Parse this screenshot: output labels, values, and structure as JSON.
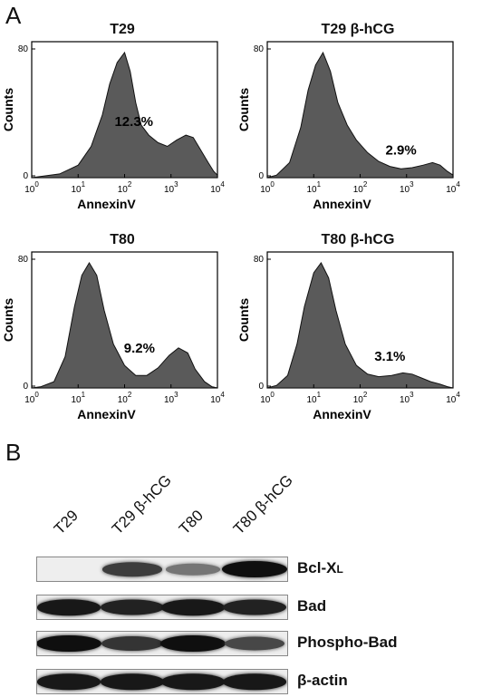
{
  "panels": {
    "a": "A",
    "b": "B"
  },
  "histograms": [
    {
      "title": "T29",
      "percent": "12.3%",
      "ylabel": "Counts",
      "xlabel": "AnnexinV",
      "yticks": [
        "0",
        "80"
      ],
      "xticks": [
        "10",
        "10",
        "10",
        "10",
        "10"
      ],
      "xtick_exponents": [
        "0",
        "1",
        "2",
        "3",
        "4"
      ],
      "shape": [
        [
          0,
          0
        ],
        [
          0.05,
          0.01
        ],
        [
          0.15,
          0.03
        ],
        [
          0.25,
          0.1
        ],
        [
          0.32,
          0.25
        ],
        [
          0.38,
          0.5
        ],
        [
          0.42,
          0.75
        ],
        [
          0.46,
          0.92
        ],
        [
          0.5,
          1.0
        ],
        [
          0.53,
          0.85
        ],
        [
          0.56,
          0.6
        ],
        [
          0.59,
          0.42
        ],
        [
          0.63,
          0.34
        ],
        [
          0.68,
          0.28
        ],
        [
          0.73,
          0.25
        ],
        [
          0.78,
          0.3
        ],
        [
          0.83,
          0.34
        ],
        [
          0.87,
          0.32
        ],
        [
          0.91,
          0.22
        ],
        [
          0.95,
          0.12
        ],
        [
          0.98,
          0.05
        ],
        [
          1.0,
          0.02
        ]
      ]
    },
    {
      "title": "T29 β-hCG",
      "percent": "2.9%",
      "ylabel": "Counts",
      "xlabel": "AnnexinV",
      "yticks": [
        "0",
        "80"
      ],
      "xticks": [
        "10",
        "10",
        "10",
        "10",
        "10"
      ],
      "xtick_exponents": [
        "0",
        "1",
        "2",
        "3",
        "4"
      ],
      "shape": [
        [
          0,
          0
        ],
        [
          0.05,
          0.02
        ],
        [
          0.12,
          0.12
        ],
        [
          0.18,
          0.4
        ],
        [
          0.22,
          0.7
        ],
        [
          0.26,
          0.9
        ],
        [
          0.3,
          1.0
        ],
        [
          0.34,
          0.85
        ],
        [
          0.38,
          0.6
        ],
        [
          0.43,
          0.42
        ],
        [
          0.48,
          0.3
        ],
        [
          0.54,
          0.2
        ],
        [
          0.6,
          0.13
        ],
        [
          0.66,
          0.09
        ],
        [
          0.72,
          0.07
        ],
        [
          0.78,
          0.08
        ],
        [
          0.84,
          0.1
        ],
        [
          0.89,
          0.12
        ],
        [
          0.93,
          0.1
        ],
        [
          0.97,
          0.05
        ],
        [
          1.0,
          0.02
        ]
      ]
    },
    {
      "title": "T80",
      "percent": "9.2%",
      "ylabel": "Counts",
      "xlabel": "AnnexinV",
      "yticks": [
        "0",
        "80"
      ],
      "xticks": [
        "10",
        "10",
        "10",
        "10",
        "10"
      ],
      "xtick_exponents": [
        "0",
        "1",
        "2",
        "3",
        "4"
      ],
      "shape": [
        [
          0,
          0
        ],
        [
          0.05,
          0.01
        ],
        [
          0.12,
          0.05
        ],
        [
          0.18,
          0.25
        ],
        [
          0.23,
          0.65
        ],
        [
          0.27,
          0.9
        ],
        [
          0.31,
          1.0
        ],
        [
          0.35,
          0.9
        ],
        [
          0.39,
          0.62
        ],
        [
          0.44,
          0.35
        ],
        [
          0.5,
          0.18
        ],
        [
          0.56,
          0.1
        ],
        [
          0.62,
          0.1
        ],
        [
          0.68,
          0.16
        ],
        [
          0.74,
          0.26
        ],
        [
          0.79,
          0.32
        ],
        [
          0.84,
          0.28
        ],
        [
          0.88,
          0.15
        ],
        [
          0.93,
          0.05
        ],
        [
          0.97,
          0.01
        ],
        [
          1.0,
          0.0
        ]
      ]
    },
    {
      "title": "T80 β-hCG",
      "percent": "3.1%",
      "ylabel": "Counts",
      "xlabel": "AnnexinV",
      "yticks": [
        "0",
        "80"
      ],
      "xticks": [
        "10",
        "10",
        "10",
        "10",
        "10"
      ],
      "xtick_exponents": [
        "0",
        "1",
        "2",
        "3",
        "4"
      ],
      "shape": [
        [
          0,
          0
        ],
        [
          0.05,
          0.02
        ],
        [
          0.11,
          0.1
        ],
        [
          0.16,
          0.35
        ],
        [
          0.2,
          0.65
        ],
        [
          0.25,
          0.92
        ],
        [
          0.29,
          1.0
        ],
        [
          0.33,
          0.88
        ],
        [
          0.37,
          0.62
        ],
        [
          0.42,
          0.35
        ],
        [
          0.48,
          0.18
        ],
        [
          0.54,
          0.11
        ],
        [
          0.6,
          0.09
        ],
        [
          0.67,
          0.1
        ],
        [
          0.73,
          0.12
        ],
        [
          0.78,
          0.11
        ],
        [
          0.83,
          0.08
        ],
        [
          0.88,
          0.05
        ],
        [
          0.93,
          0.03
        ],
        [
          0.97,
          0.01
        ],
        [
          1.0,
          0.0
        ]
      ]
    }
  ],
  "blot": {
    "lanes": [
      "T29",
      "T29 β-hCG",
      "T80",
      "T80 β-hCG"
    ],
    "rows": [
      {
        "label_main": "Bcl-X",
        "label_sub": "L",
        "intensities": [
          0.0,
          0.75,
          0.45,
          1.0
        ]
      },
      {
        "label_main": "Bad",
        "label_sub": "",
        "intensities": [
          0.95,
          0.9,
          0.95,
          0.9
        ]
      },
      {
        "label_main": "Phospho-Bad",
        "label_sub": "",
        "intensities": [
          1.0,
          0.8,
          1.0,
          0.7
        ]
      },
      {
        "label_main": "β-actin",
        "label_sub": "",
        "intensities": [
          0.95,
          0.95,
          0.95,
          0.95
        ]
      }
    ]
  }
}
